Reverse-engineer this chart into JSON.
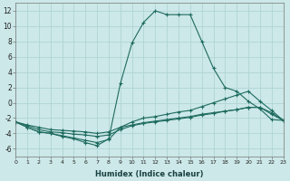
{
  "xlabel": "Humidex (Indice chaleur)",
  "background_color": "#cce8e8",
  "grid_color": "#b0d4d4",
  "line_color": "#1e6b5e",
  "x_min": 0,
  "x_max": 23,
  "y_min": -7,
  "y_max": 13,
  "yticks": [
    -6,
    -4,
    -2,
    0,
    2,
    4,
    6,
    8,
    10,
    12
  ],
  "xticks": [
    0,
    1,
    2,
    3,
    4,
    5,
    6,
    7,
    8,
    9,
    10,
    11,
    12,
    13,
    14,
    15,
    16,
    17,
    18,
    19,
    20,
    21,
    22,
    23
  ],
  "series": [
    {
      "x": [
        0,
        1,
        2,
        3,
        4,
        5,
        6,
        7,
        8,
        9,
        10,
        11,
        12,
        13,
        14,
        15,
        16,
        17,
        18,
        19,
        20,
        21,
        22,
        23
      ],
      "y": [
        -2.5,
        -3.2,
        -3.8,
        -4.0,
        -4.4,
        -4.7,
        -5.2,
        -5.6,
        -4.7,
        2.5,
        7.8,
        10.5,
        12.0,
        11.5,
        11.5,
        11.5,
        8.0,
        4.5,
        2.0,
        1.5,
        0.2,
        -0.8,
        -2.2,
        -2.3
      ]
    },
    {
      "x": [
        0,
        1,
        2,
        3,
        4,
        5,
        6,
        7,
        8,
        9,
        10,
        11,
        12,
        13,
        14,
        15,
        16,
        17,
        18,
        19,
        20,
        21,
        22,
        23
      ],
      "y": [
        -2.5,
        -3.2,
        -3.8,
        -4.0,
        -4.3,
        -4.6,
        -4.9,
        -5.2,
        -4.8,
        -3.2,
        -2.5,
        -2.0,
        -1.8,
        -1.5,
        -1.2,
        -1.0,
        -0.5,
        0.0,
        0.5,
        1.0,
        1.5,
        0.2,
        -1.0,
        -2.3
      ]
    },
    {
      "x": [
        0,
        1,
        2,
        3,
        4,
        5,
        6,
        7,
        8,
        9,
        10,
        11,
        12,
        13,
        14,
        15,
        16,
        17,
        18,
        19,
        20,
        21,
        22,
        23
      ],
      "y": [
        -2.5,
        -3.0,
        -3.5,
        -3.8,
        -3.9,
        -4.1,
        -4.2,
        -4.4,
        -4.2,
        -3.5,
        -3.0,
        -2.7,
        -2.5,
        -2.3,
        -2.1,
        -1.9,
        -1.6,
        -1.4,
        -1.1,
        -0.9,
        -0.6,
        -0.6,
        -1.5,
        -2.3
      ]
    },
    {
      "x": [
        0,
        1,
        2,
        3,
        4,
        5,
        6,
        7,
        8,
        9,
        10,
        11,
        12,
        13,
        14,
        15,
        16,
        17,
        18,
        19,
        20,
        21,
        22,
        23
      ],
      "y": [
        -2.5,
        -2.9,
        -3.2,
        -3.5,
        -3.6,
        -3.7,
        -3.8,
        -4.0,
        -3.8,
        -3.2,
        -2.9,
        -2.6,
        -2.4,
        -2.2,
        -2.0,
        -1.8,
        -1.5,
        -1.3,
        -1.1,
        -0.9,
        -0.6,
        -0.6,
        -1.3,
        -2.3
      ]
    }
  ]
}
